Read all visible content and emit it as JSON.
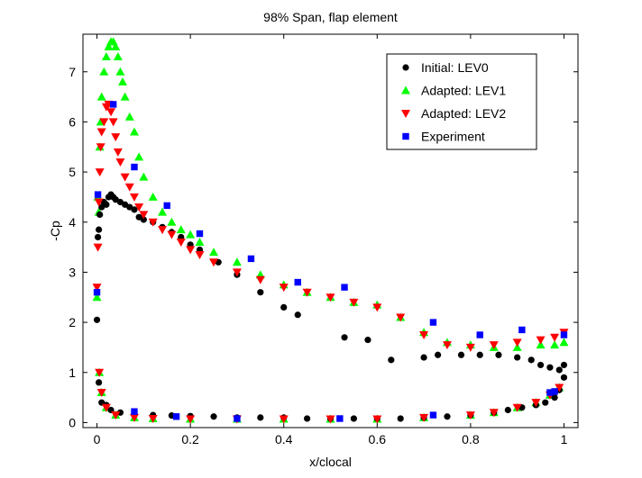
{
  "chart_data": {
    "type": "scatter",
    "title": "98% Span, flap element",
    "xlabel": "x/clocal",
    "ylabel": "-Cp",
    "xlim": [
      -0.03,
      1.03
    ],
    "ylim": [
      -0.1,
      7.75
    ],
    "x_ticks": [
      0,
      0.2,
      0.4,
      0.6,
      0.8,
      1
    ],
    "x_tick_labels": [
      "0",
      "0.2",
      "0.4",
      "0.6",
      "0.8",
      "1"
    ],
    "y_ticks": [
      0,
      1,
      2,
      3,
      4,
      5,
      6,
      7
    ],
    "y_tick_labels": [
      "0",
      "1",
      "2",
      "3",
      "4",
      "5",
      "6",
      "7"
    ],
    "grid": false,
    "legend_position": "top-right",
    "series": [
      {
        "name": "Initial: LEV0",
        "marker": "circle",
        "color": "#000000",
        "x": [
          0.0,
          0.002,
          0.004,
          0.006,
          0.01,
          0.015,
          0.02,
          0.025,
          0.03,
          0.035,
          0.04,
          0.05,
          0.06,
          0.07,
          0.08,
          0.09,
          0.1,
          0.12,
          0.14,
          0.16,
          0.18,
          0.2,
          0.22,
          0.26,
          0.3,
          0.35,
          0.4,
          0.43,
          0.53,
          0.58,
          0.63,
          0.7,
          0.73,
          0.78,
          0.82,
          0.86,
          0.9,
          0.93,
          0.95,
          0.97,
          0.99,
          1.0,
          0.004,
          0.01,
          0.02,
          0.03,
          0.05,
          0.08,
          0.12,
          0.16,
          0.2,
          0.25,
          0.3,
          0.35,
          0.4,
          0.45,
          0.5,
          0.55,
          0.6,
          0.65,
          0.7,
          0.75,
          0.8,
          0.85,
          0.88,
          0.91,
          0.94,
          0.96,
          0.98,
          0.99,
          1.0
        ],
        "y": [
          2.05,
          3.7,
          3.85,
          4.15,
          4.3,
          4.4,
          4.35,
          4.5,
          4.55,
          4.5,
          4.45,
          4.4,
          4.35,
          4.3,
          4.25,
          4.1,
          4.05,
          4.0,
          3.9,
          3.8,
          3.7,
          3.55,
          3.45,
          3.2,
          2.95,
          2.6,
          2.3,
          2.15,
          1.7,
          1.65,
          1.25,
          1.3,
          1.35,
          1.35,
          1.35,
          1.35,
          1.3,
          1.25,
          1.15,
          1.1,
          1.05,
          1.15,
          0.8,
          0.4,
          0.35,
          0.25,
          0.2,
          0.18,
          0.15,
          0.14,
          0.13,
          0.12,
          0.1,
          0.1,
          0.1,
          0.08,
          0.08,
          0.08,
          0.08,
          0.08,
          0.1,
          0.12,
          0.15,
          0.2,
          0.25,
          0.3,
          0.35,
          0.4,
          0.5,
          0.65,
          0.9
        ]
      },
      {
        "name": "Adapted: LEV1",
        "marker": "triangle-up",
        "color": "#00ff00",
        "x": [
          0.0,
          0.002,
          0.004,
          0.006,
          0.008,
          0.01,
          0.015,
          0.02,
          0.025,
          0.03,
          0.035,
          0.04,
          0.045,
          0.05,
          0.055,
          0.06,
          0.07,
          0.08,
          0.09,
          0.1,
          0.12,
          0.14,
          0.16,
          0.18,
          0.2,
          0.22,
          0.25,
          0.3,
          0.35,
          0.4,
          0.45,
          0.5,
          0.55,
          0.6,
          0.65,
          0.7,
          0.75,
          0.8,
          0.85,
          0.9,
          0.95,
          0.98,
          1.0,
          0.005,
          0.01,
          0.02,
          0.04,
          0.08,
          0.12,
          0.2,
          0.3,
          0.4,
          0.5,
          0.6,
          0.7,
          0.8,
          0.85,
          0.9,
          0.94,
          0.97,
          0.99
        ],
        "y": [
          2.5,
          4.5,
          4.2,
          5.5,
          6.0,
          6.5,
          7.0,
          7.3,
          7.5,
          7.6,
          7.6,
          7.5,
          7.3,
          7.0,
          6.8,
          6.5,
          6.1,
          5.8,
          5.3,
          4.9,
          4.5,
          4.2,
          4.0,
          3.85,
          3.75,
          3.6,
          3.4,
          3.2,
          2.95,
          2.75,
          2.6,
          2.5,
          2.4,
          2.35,
          2.1,
          1.8,
          1.6,
          1.55,
          1.5,
          1.5,
          1.55,
          1.55,
          1.6,
          1.0,
          0.6,
          0.3,
          0.15,
          0.1,
          0.08,
          0.07,
          0.07,
          0.07,
          0.07,
          0.07,
          0.1,
          0.15,
          0.2,
          0.3,
          0.4,
          0.55,
          0.7
        ]
      },
      {
        "name": "Adapted: LEV2",
        "marker": "triangle-down",
        "color": "#ff0000",
        "x": [
          0.0,
          0.002,
          0.004,
          0.006,
          0.008,
          0.01,
          0.015,
          0.02,
          0.025,
          0.03,
          0.035,
          0.04,
          0.045,
          0.05,
          0.06,
          0.07,
          0.08,
          0.09,
          0.1,
          0.12,
          0.14,
          0.16,
          0.18,
          0.2,
          0.22,
          0.25,
          0.3,
          0.35,
          0.4,
          0.45,
          0.5,
          0.55,
          0.6,
          0.65,
          0.7,
          0.75,
          0.8,
          0.85,
          0.9,
          0.95,
          0.98,
          1.0,
          0.005,
          0.01,
          0.02,
          0.04,
          0.08,
          0.12,
          0.2,
          0.3,
          0.4,
          0.5,
          0.6,
          0.7,
          0.8,
          0.85,
          0.9,
          0.94,
          0.97,
          0.99
        ],
        "y": [
          2.7,
          3.5,
          4.4,
          5.0,
          5.5,
          5.8,
          6.0,
          6.3,
          6.35,
          6.2,
          6.0,
          5.7,
          5.4,
          5.2,
          4.9,
          4.7,
          4.5,
          4.3,
          4.15,
          4.0,
          3.85,
          3.75,
          3.6,
          3.45,
          3.35,
          3.2,
          3.0,
          2.85,
          2.7,
          2.6,
          2.5,
          2.4,
          2.3,
          2.1,
          1.75,
          1.55,
          1.5,
          1.55,
          1.6,
          1.65,
          1.7,
          1.8,
          1.0,
          0.6,
          0.3,
          0.15,
          0.1,
          0.08,
          0.07,
          0.07,
          0.07,
          0.07,
          0.07,
          0.1,
          0.15,
          0.2,
          0.3,
          0.4,
          0.55,
          0.7
        ]
      },
      {
        "name": "Experiment",
        "marker": "square",
        "color": "#0000ff",
        "x": [
          0.0,
          0.002,
          0.035,
          0.08,
          0.15,
          0.22,
          0.33,
          0.43,
          0.53,
          0.72,
          0.82,
          0.91,
          0.97,
          1.0,
          0.08,
          0.17,
          0.3,
          0.52,
          0.72,
          0.98
        ],
        "y": [
          2.6,
          4.55,
          6.35,
          5.1,
          4.33,
          3.77,
          3.27,
          2.8,
          2.7,
          2.0,
          1.75,
          1.85,
          0.6,
          1.75,
          0.22,
          0.12,
          0.08,
          0.08,
          0.15,
          0.62
        ]
      }
    ]
  }
}
